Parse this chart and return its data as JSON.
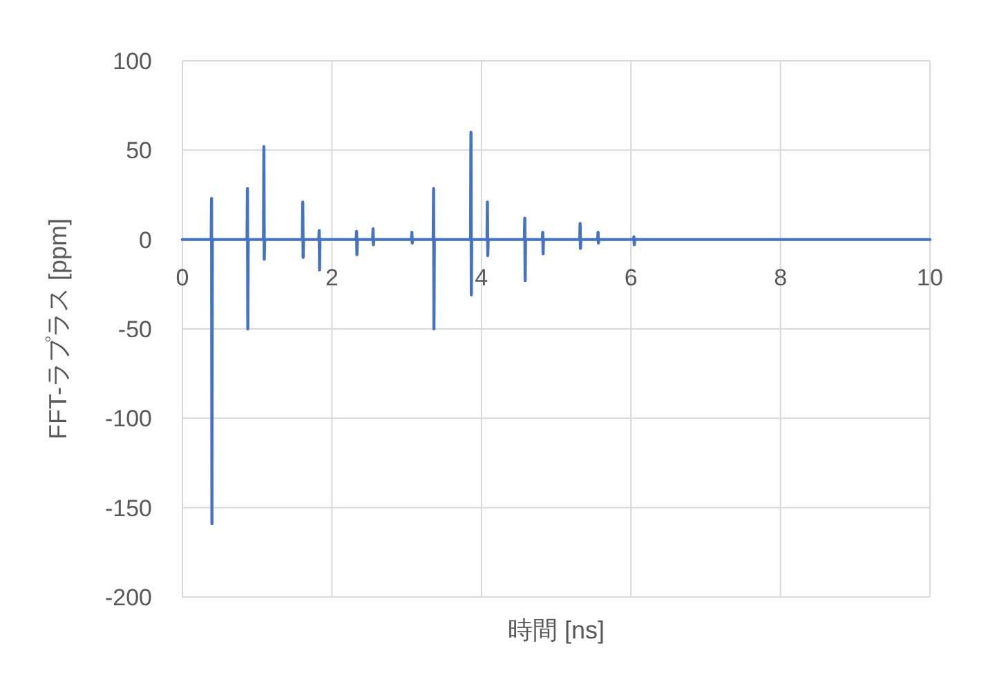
{
  "chart_data": {
    "type": "line",
    "xlabel": "時間 [ns]",
    "ylabel": "FFT-ラプラス [ppm]",
    "xlim": [
      0,
      10
    ],
    "ylim": [
      -200,
      100
    ],
    "xticks": [
      0,
      2,
      4,
      6,
      8,
      10
    ],
    "yticks": [
      -200,
      -150,
      -100,
      -50,
      0,
      50,
      100
    ],
    "grid": true,
    "series": [
      {
        "color": "#4472c4",
        "x": [
          0,
          0.385,
          0.39,
          0.395,
          0.4,
          0.865,
          0.87,
          0.875,
          0.88,
          1.085,
          1.09,
          1.095,
          1.1,
          1.605,
          1.61,
          1.615,
          1.62,
          1.825,
          1.83,
          1.835,
          1.84,
          2.325,
          2.33,
          2.335,
          2.34,
          2.545,
          2.55,
          2.555,
          2.56,
          3.065,
          3.07,
          3.075,
          3.08,
          3.355,
          3.36,
          3.365,
          3.37,
          3.855,
          3.86,
          3.865,
          3.87,
          4.075,
          4.08,
          4.085,
          4.09,
          4.575,
          4.58,
          4.585,
          4.59,
          4.815,
          4.82,
          4.825,
          4.83,
          5.315,
          5.32,
          5.325,
          5.33,
          5.555,
          5.56,
          5.565,
          5.57,
          6.035,
          6.04,
          6.045,
          6.05,
          10
        ],
        "values": [
          0,
          0,
          23,
          -159,
          0,
          0,
          28.5,
          -50,
          0,
          0,
          52,
          -11,
          0,
          0,
          21,
          -10,
          0,
          0,
          5,
          -17,
          0,
          0,
          4.5,
          -8.5,
          0,
          0,
          6,
          -3,
          0,
          0,
          4,
          -2,
          0,
          0,
          28.5,
          -50,
          0,
          0,
          60,
          -31,
          0,
          0,
          21,
          -9,
          0,
          0,
          12,
          -23,
          0,
          0,
          4,
          -8,
          0,
          0,
          9,
          -5,
          0,
          0,
          4,
          -2,
          0,
          0,
          1.5,
          -3,
          0,
          0
        ]
      }
    ]
  }
}
